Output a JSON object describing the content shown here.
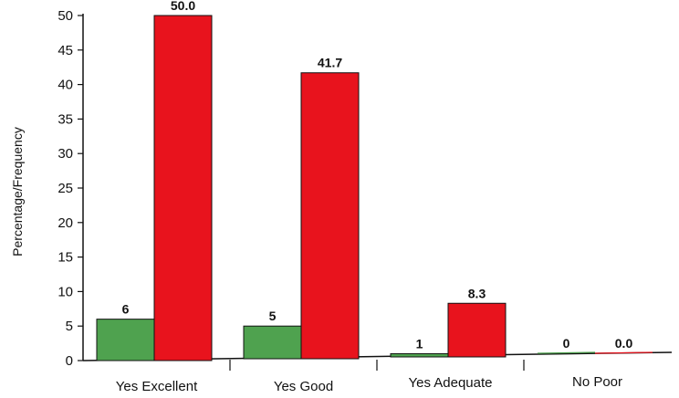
{
  "colors": {
    "frequency": "#4fa24f",
    "percentage": "#e8131d",
    "bar_stroke": "#111111",
    "axis": "#111111"
  },
  "chart_data": {
    "type": "bar",
    "title": "",
    "xlabel": "",
    "ylabel": "Percentage/Frequency",
    "ylim": [
      0,
      50
    ],
    "yticks": [
      0,
      5,
      10,
      15,
      20,
      25,
      30,
      35,
      40,
      45,
      50
    ],
    "categories": [
      "Yes Excellent",
      "Yes Good",
      "Yes Adequate",
      "No Poor"
    ],
    "series": [
      {
        "values": [
          6,
          5,
          1,
          0
        ],
        "labels": [
          "6",
          "5",
          "1",
          "0"
        ]
      },
      {
        "values": [
          50.0,
          41.7,
          8.3,
          0.0
        ],
        "labels": [
          "50.0",
          "41.7",
          "8.3",
          "0.0"
        ]
      }
    ],
    "grid": false,
    "legend": "none"
  }
}
